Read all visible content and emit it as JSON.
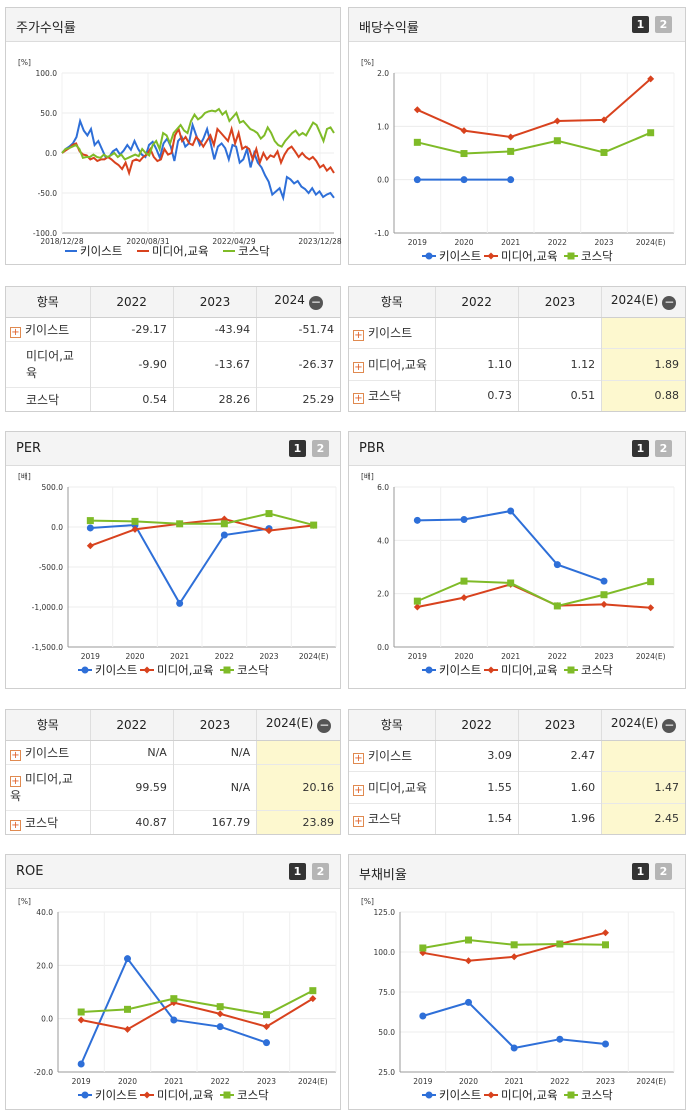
{
  "colors": {
    "keyist": "#2e6fd8",
    "media": "#d8421e",
    "kosdaq": "#7fbb28",
    "highlight": "#fdf8cf"
  },
  "legend": [
    "키이스트",
    "미디어,교육",
    "코스닥"
  ],
  "tabs": [
    "1",
    "2"
  ],
  "stock": {
    "title": "주가수익률",
    "chart_data": {
      "type": "line",
      "unit": "[%]",
      "ylim": [
        -100,
        100
      ],
      "yticks": [
        "100.0",
        "50.0",
        "0.0",
        "-50.0",
        "-100.0"
      ],
      "xticks": [
        "2018/12/28",
        "2020/08/31",
        "2022/04/29",
        "2023/12/28"
      ],
      "series": [
        {
          "name": "키이스트",
          "values": [
            0,
            5,
            8,
            12,
            20,
            40,
            28,
            22,
            30,
            10,
            15,
            5,
            -5,
            -5,
            2,
            5,
            -2,
            3,
            10,
            4,
            15,
            5,
            -2,
            -5,
            10,
            14,
            5,
            -6,
            12,
            18,
            8,
            -10,
            15,
            20,
            8,
            12,
            35,
            22,
            10,
            18,
            30,
            12,
            -8,
            8,
            12,
            6,
            -8,
            10,
            8,
            -12,
            -8,
            5,
            -18,
            0,
            -12,
            -18,
            -28,
            -36,
            -52,
            -48,
            -44,
            -56,
            -30,
            -33,
            -38,
            -35,
            -42,
            -45,
            -50,
            -44,
            -52,
            -48,
            -55,
            -52,
            -50,
            -56
          ]
        },
        {
          "name": "미디어,교육",
          "values": [
            0,
            3,
            6,
            10,
            12,
            2,
            -2,
            -3,
            -8,
            -6,
            -10,
            -8,
            -8,
            -5,
            -8,
            -12,
            -15,
            -20,
            -12,
            -25,
            -10,
            -8,
            -10,
            -5,
            -2,
            5,
            -5,
            -10,
            -8,
            5,
            -2,
            0,
            22,
            30,
            15,
            20,
            12,
            10,
            20,
            15,
            8,
            15,
            22,
            10,
            30,
            25,
            20,
            15,
            30,
            12,
            25,
            5,
            8,
            5,
            -8,
            5,
            -12,
            0,
            -8,
            -3,
            -5,
            2,
            -12,
            -2,
            5,
            8,
            2,
            -5,
            0,
            -5,
            -8,
            -5,
            -10,
            -18,
            -15,
            -22,
            -18,
            -25
          ]
        },
        {
          "name": "코스닥",
          "values": [
            0,
            5,
            6,
            8,
            10,
            5,
            -6,
            -5,
            -5,
            -2,
            -5,
            -6,
            -2,
            -5,
            -3,
            0,
            -5,
            -2,
            -8,
            -6,
            -4,
            -2,
            -4,
            5,
            0,
            -3,
            10,
            15,
            5,
            25,
            22,
            12,
            25,
            30,
            35,
            28,
            25,
            40,
            48,
            42,
            45,
            50,
            52,
            53,
            52,
            55,
            48,
            52,
            40,
            45,
            50,
            38,
            40,
            35,
            30,
            28,
            25,
            18,
            22,
            32,
            25,
            15,
            10,
            8,
            15,
            20,
            25,
            28,
            22,
            25,
            22,
            30,
            38,
            35,
            25,
            15,
            30,
            32,
            25
          ]
        }
      ]
    },
    "table": {
      "header": [
        "항목",
        "2022",
        "2023",
        "2024"
      ],
      "rows": [
        {
          "name": "키이스트",
          "values": [
            "-29.17",
            "-43.94",
            "-51.74"
          ]
        },
        {
          "name": "미디어,교육",
          "values": [
            "-9.90",
            "-13.67",
            "-26.37"
          ]
        },
        {
          "name": "코스닥",
          "values": [
            "0.54",
            "28.26",
            "25.29"
          ]
        }
      ]
    }
  },
  "dividend": {
    "title": "배당수익률",
    "chart_data": {
      "type": "line",
      "unit": "[%]",
      "ylim": [
        -1,
        2
      ],
      "yticks": [
        "2.0",
        "1.0",
        "0.0",
        "-1.0"
      ],
      "categories": [
        "2019",
        "2020",
        "2021",
        "2022",
        "2023",
        "2024(E)"
      ],
      "series": [
        {
          "name": "키이스트",
          "values": [
            0,
            0,
            0,
            null,
            null,
            null
          ]
        },
        {
          "name": "미디어,교육",
          "values": [
            1.31,
            0.92,
            0.8,
            1.1,
            1.12,
            1.89
          ]
        },
        {
          "name": "코스닥",
          "values": [
            0.7,
            0.49,
            0.53,
            0.73,
            0.51,
            0.88
          ]
        }
      ]
    },
    "table": {
      "header": [
        "항목",
        "2022",
        "2023",
        "2024(E)"
      ],
      "rows": [
        {
          "name": "키이스트",
          "values": [
            "",
            "",
            ""
          ]
        },
        {
          "name": "미디어,교육",
          "values": [
            "1.10",
            "1.12",
            "1.89"
          ]
        },
        {
          "name": "코스닥",
          "values": [
            "0.73",
            "0.51",
            "0.88"
          ]
        }
      ]
    }
  },
  "per": {
    "title": "PER",
    "chart_data": {
      "type": "line",
      "unit": "[배]",
      "ylim": [
        -1500,
        500
      ],
      "yticks": [
        "500.0",
        "0.0",
        "-500.0",
        "-1,000.0",
        "-1,500.0"
      ],
      "categories": [
        "2019",
        "2020",
        "2021",
        "2022",
        "2023",
        "2024(E)"
      ],
      "series": [
        {
          "name": "키이스트",
          "values": [
            -12,
            25,
            -955,
            -100,
            -20,
            null
          ]
        },
        {
          "name": "미디어,교육",
          "values": [
            -235,
            -30,
            40,
            99.59,
            -45,
            20.16
          ]
        },
        {
          "name": "코스닥",
          "values": [
            80,
            70,
            40,
            40.87,
            167.79,
            23.89
          ]
        }
      ]
    },
    "table": {
      "header": [
        "항목",
        "2022",
        "2023",
        "2024(E)"
      ],
      "rows": [
        {
          "name": "키이스트",
          "values": [
            "N/A",
            "N/A",
            ""
          ]
        },
        {
          "name": "미디어,교육",
          "values": [
            "99.59",
            "N/A",
            "20.16"
          ]
        },
        {
          "name": "코스닥",
          "values": [
            "40.87",
            "167.79",
            "23.89"
          ]
        }
      ]
    }
  },
  "pbr": {
    "title": "PBR",
    "chart_data": {
      "type": "line",
      "unit": "[배]",
      "ylim": [
        0,
        6
      ],
      "yticks": [
        "6.0",
        "4.0",
        "2.0",
        "0.0"
      ],
      "categories": [
        "2019",
        "2020",
        "2021",
        "2022",
        "2023",
        "2024(E)"
      ],
      "series": [
        {
          "name": "키이스트",
          "values": [
            4.75,
            4.78,
            5.1,
            3.09,
            2.47,
            null
          ]
        },
        {
          "name": "미디어,교육",
          "values": [
            1.5,
            1.85,
            2.35,
            1.55,
            1.6,
            1.47
          ]
        },
        {
          "name": "코스닥",
          "values": [
            1.72,
            2.47,
            2.4,
            1.54,
            1.96,
            2.45
          ]
        }
      ]
    },
    "table": {
      "header": [
        "항목",
        "2022",
        "2023",
        "2024(E)"
      ],
      "rows": [
        {
          "name": "키이스트",
          "values": [
            "3.09",
            "2.47",
            ""
          ]
        },
        {
          "name": "미디어,교육",
          "values": [
            "1.55",
            "1.60",
            "1.47"
          ]
        },
        {
          "name": "코스닥",
          "values": [
            "1.54",
            "1.96",
            "2.45"
          ]
        }
      ]
    }
  },
  "roe": {
    "title": "ROE",
    "chart_data": {
      "type": "line",
      "unit": "[%]",
      "ylim": [
        -20,
        40
      ],
      "yticks": [
        "40.0",
        "20.0",
        "0.0",
        "-20.0"
      ],
      "categories": [
        "2019",
        "2020",
        "2021",
        "2022",
        "2023",
        "2024(E)"
      ],
      "series": [
        {
          "name": "키이스트",
          "values": [
            -17,
            22.5,
            -0.5,
            -3,
            -9,
            null
          ]
        },
        {
          "name": "미디어,교육",
          "values": [
            -0.5,
            -4,
            6,
            1.8,
            -3,
            7.5
          ]
        },
        {
          "name": "코스닥",
          "values": [
            2.5,
            3.5,
            7.5,
            4.5,
            1.5,
            10.5
          ]
        }
      ]
    }
  },
  "debt": {
    "title": "부채비율",
    "chart_data": {
      "type": "line",
      "unit": "[%]",
      "ylim": [
        25,
        125
      ],
      "yticks": [
        "125.0",
        "100.0",
        "75.0",
        "50.0",
        "25.0"
      ],
      "categories": [
        "2019",
        "2020",
        "2021",
        "2022",
        "2023",
        "2024(E)"
      ],
      "series": [
        {
          "name": "키이스트",
          "values": [
            60,
            68.5,
            40,
            45.5,
            42.5,
            null
          ]
        },
        {
          "name": "미디어,교육",
          "values": [
            99.5,
            94.5,
            97,
            105,
            112,
            null
          ]
        },
        {
          "name": "코스닥",
          "values": [
            102.5,
            107.5,
            104.5,
            105,
            104.5,
            null
          ]
        }
      ]
    }
  }
}
